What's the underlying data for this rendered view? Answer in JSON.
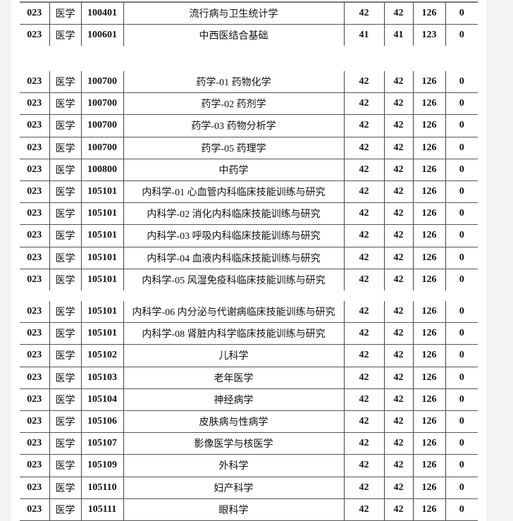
{
  "segments": [
    {
      "rows": [
        {
          "unit": "023",
          "field": "医学",
          "code": "100401",
          "name": "流行病与卫生统计学",
          "s1": "42",
          "s2": "42",
          "s3": "126",
          "s4": "0"
        },
        {
          "unit": "023",
          "field": "医学",
          "code": "100601",
          "name": "中西医结合基础",
          "s1": "41",
          "s2": "41",
          "s3": "123",
          "s4": "0"
        }
      ]
    },
    {
      "rows": [
        {
          "unit": "023",
          "field": "医学",
          "code": "100700",
          "name": "药学-01 药物化学",
          "s1": "42",
          "s2": "42",
          "s3": "126",
          "s4": "0"
        },
        {
          "unit": "023",
          "field": "医学",
          "code": "100700",
          "name": "药学-02 药剂学",
          "s1": "42",
          "s2": "42",
          "s3": "126",
          "s4": "0"
        },
        {
          "unit": "023",
          "field": "医学",
          "code": "100700",
          "name": "药学-03 药物分析学",
          "s1": "42",
          "s2": "42",
          "s3": "126",
          "s4": "0"
        },
        {
          "unit": "023",
          "field": "医学",
          "code": "100700",
          "name": "药学-05 药理学",
          "s1": "42",
          "s2": "42",
          "s3": "126",
          "s4": "0"
        },
        {
          "unit": "023",
          "field": "医学",
          "code": "100800",
          "name": "中药学",
          "s1": "42",
          "s2": "42",
          "s3": "126",
          "s4": "0"
        },
        {
          "unit": "023",
          "field": "医学",
          "code": "105101",
          "name": "内科学-01 心血管内科临床技能训练与研究",
          "s1": "42",
          "s2": "42",
          "s3": "126",
          "s4": "0"
        },
        {
          "unit": "023",
          "field": "医学",
          "code": "105101",
          "name": "内科学-02 消化内科临床技能训练与研究",
          "s1": "42",
          "s2": "42",
          "s3": "126",
          "s4": "0"
        },
        {
          "unit": "023",
          "field": "医学",
          "code": "105101",
          "name": "内科学-03 呼吸内科临床技能训练与研究",
          "s1": "42",
          "s2": "42",
          "s3": "126",
          "s4": "0"
        },
        {
          "unit": "023",
          "field": "医学",
          "code": "105101",
          "name": "内科学-04 血液内科临床技能训练与研究",
          "s1": "42",
          "s2": "42",
          "s3": "126",
          "s4": "0"
        },
        {
          "unit": "023",
          "field": "医学",
          "code": "105101",
          "name": "内科学-05 风湿免疫科临床技能训练与研究",
          "s1": "42",
          "s2": "42",
          "s3": "126",
          "s4": "0"
        }
      ]
    },
    {
      "rows": [
        {
          "unit": "023",
          "field": "医学",
          "code": "105101",
          "name": "内科学-06 内分泌与代谢病临床技能训练与研究",
          "s1": "42",
          "s2": "42",
          "s3": "126",
          "s4": "0"
        },
        {
          "unit": "023",
          "field": "医学",
          "code": "105101",
          "name": "内科学-08 肾脏内科学临床技能训练与研究",
          "s1": "42",
          "s2": "42",
          "s3": "126",
          "s4": "0"
        },
        {
          "unit": "023",
          "field": "医学",
          "code": "105102",
          "name": "儿科学",
          "s1": "42",
          "s2": "42",
          "s3": "126",
          "s4": "0"
        },
        {
          "unit": "023",
          "field": "医学",
          "code": "105103",
          "name": "老年医学",
          "s1": "42",
          "s2": "42",
          "s3": "126",
          "s4": "0"
        },
        {
          "unit": "023",
          "field": "医学",
          "code": "105104",
          "name": "神经病学",
          "s1": "42",
          "s2": "42",
          "s3": "126",
          "s4": "0"
        },
        {
          "unit": "023",
          "field": "医学",
          "code": "105106",
          "name": "皮肤病与性病学",
          "s1": "42",
          "s2": "42",
          "s3": "126",
          "s4": "0"
        },
        {
          "unit": "023",
          "field": "医学",
          "code": "105107",
          "name": "影像医学与核医学",
          "s1": "42",
          "s2": "42",
          "s3": "126",
          "s4": "0"
        },
        {
          "unit": "023",
          "field": "医学",
          "code": "105109",
          "name": "外科学",
          "s1": "42",
          "s2": "42",
          "s3": "126",
          "s4": "0"
        },
        {
          "unit": "023",
          "field": "医学",
          "code": "105110",
          "name": "妇产科学",
          "s1": "42",
          "s2": "42",
          "s3": "126",
          "s4": "0"
        },
        {
          "unit": "023",
          "field": "医学",
          "code": "105111",
          "name": "眼科学",
          "s1": "42",
          "s2": "42",
          "s3": "126",
          "s4": "0"
        }
      ]
    }
  ]
}
